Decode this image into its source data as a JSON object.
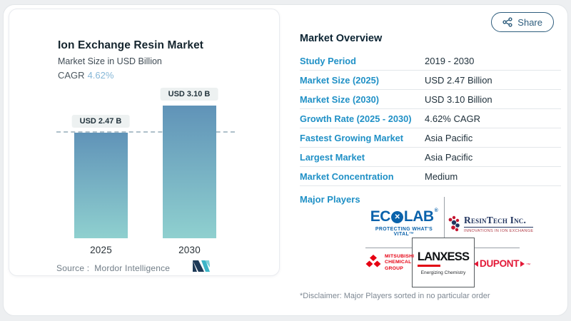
{
  "share": {
    "label": "Share"
  },
  "chart_card": {
    "title": "Ion Exchange Resin Market",
    "subtitle": "Market Size in USD Billion",
    "cagr_label": "CAGR",
    "cagr_value": "4.62%",
    "source_label": "Source :",
    "source_value": "Mordor Intelligence"
  },
  "chart_data": {
    "type": "bar",
    "title": "Ion Exchange Resin Market",
    "subtitle": "Market Size in USD Billion",
    "cagr": "4.62%",
    "categories": [
      "2025",
      "2030"
    ],
    "values": [
      2.47,
      3.1
    ],
    "value_labels": [
      "USD 2.47 B",
      "USD 3.10 B"
    ],
    "unit": "USD Billion",
    "reference_line": 2.47,
    "ylim": [
      0,
      3.4
    ],
    "grid": false,
    "bar_gradient": [
      "#6093b8",
      "#8fd0cf"
    ]
  },
  "overview": {
    "title": "Market Overview",
    "rows": [
      {
        "label": "Study Period",
        "value": "2019 - 2030"
      },
      {
        "label": "Market Size (2025)",
        "value": "USD 2.47 Billion"
      },
      {
        "label": "Market Size (2030)",
        "value": "USD 3.10 Billion"
      },
      {
        "label": "Growth Rate (2025 - 2030)",
        "value": "4.62% CAGR"
      },
      {
        "label": "Fastest Growing Market",
        "value": "Asia Pacific"
      },
      {
        "label": "Largest Market",
        "value": "Asia Pacific"
      },
      {
        "label": "Market Concentration",
        "value": "Medium"
      }
    ],
    "major_players_label": "Major Players",
    "players": [
      "Ecolab",
      "ResinTech Inc.",
      "Mitsubishi Chemical Group",
      "LANXESS",
      "DuPont"
    ],
    "disclaimer": "*Disclaimer: Major Players sorted in no particular order"
  },
  "logos": {
    "ecolab": {
      "name_left": "EC",
      "o_mark": "✕",
      "name_right": "LAB",
      "reg": "®",
      "tagline": "PROTECTING WHAT'S VITAL™"
    },
    "resintech": {
      "name": "ResinTech Inc.",
      "tagline": "INNOVATIONS IN ION EXCHANGE"
    },
    "mitsubishi": {
      "lines": [
        "MITSUBISHI",
        "CHEMICAL",
        "GROUP"
      ]
    },
    "lanxess": {
      "name": "LANXESS",
      "tagline": "Energizing Chemistry"
    },
    "dupont": {
      "name": "DUPONT",
      "tm": "™"
    }
  },
  "colors": {
    "label_blue": "#1f90c6",
    "cagr_blue": "#86b7d7",
    "bar_top": "#6093b8",
    "bar_bottom": "#8fd0cf",
    "share_border": "#2f5e7e",
    "ecolab_blue": "#0a62ab",
    "resintech_navy": "#22355f",
    "mitsubishi_red": "#e60012",
    "lanxess_red": "#e10012",
    "dupont_red": "#e31837"
  }
}
